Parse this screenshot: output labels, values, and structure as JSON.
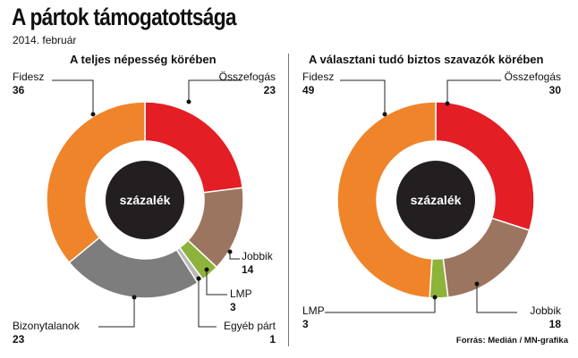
{
  "title": "A pártok támogatottsága",
  "subtitle": "2014. február",
  "source": "Forrás: Medián / MN-grafika",
  "center_label": "százalék",
  "chart_data": [
    {
      "type": "donut",
      "title": "A teljes népesség körében",
      "series": [
        {
          "name": "Összefogás",
          "value": 23,
          "color": "#e31e24"
        },
        {
          "name": "Jobbik",
          "value": 14,
          "color": "#9c7560"
        },
        {
          "name": "LMP",
          "value": 3,
          "color": "#8db33b"
        },
        {
          "name": "Egyéb párt",
          "value": 1,
          "color": "#b9b9b9"
        },
        {
          "name": "Bizonytalanok",
          "value": 23,
          "color": "#7d7d7d"
        },
        {
          "name": "Fidesz",
          "value": 36,
          "color": "#f0842a"
        }
      ]
    },
    {
      "type": "donut",
      "title": "A választani tudó biztos szavazók körében",
      "series": [
        {
          "name": "Összefogás",
          "value": 30,
          "color": "#e31e24"
        },
        {
          "name": "Jobbik",
          "value": 18,
          "color": "#9c7560"
        },
        {
          "name": "LMP",
          "value": 3,
          "color": "#8db33b"
        },
        {
          "name": "Fidesz",
          "value": 49,
          "color": "#f0842a"
        }
      ]
    }
  ]
}
